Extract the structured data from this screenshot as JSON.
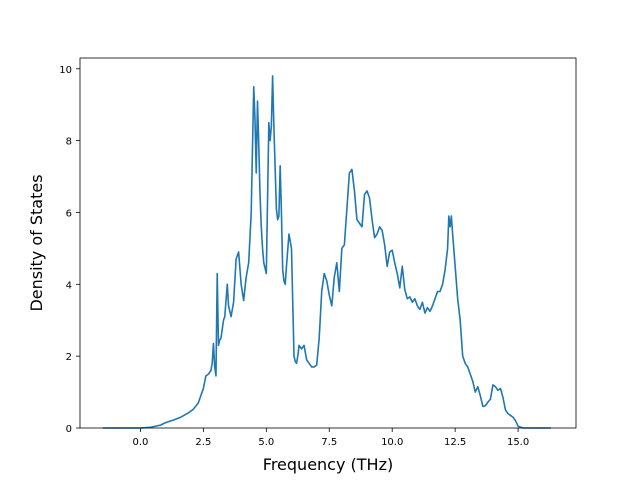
{
  "chart_data": {
    "type": "line",
    "title": "",
    "xlabel": "Frequency (THz)",
    "ylabel": "Density of States",
    "xlim": [
      -2.4,
      17.3
    ],
    "ylim": [
      0,
      10.3
    ],
    "x_ticks": [
      0.0,
      2.5,
      5.0,
      7.5,
      10.0,
      12.5,
      15.0
    ],
    "x_tick_labels": [
      "0.0",
      "2.5",
      "5.0",
      "7.5",
      "10.0",
      "12.5",
      "15.0"
    ],
    "y_ticks": [
      0,
      2,
      4,
      6,
      8,
      10
    ],
    "y_tick_labels": [
      "0",
      "2",
      "4",
      "6",
      "8",
      "10"
    ],
    "grid": false,
    "legend": "none",
    "color": "#1f77b4",
    "series": [
      {
        "x": [
          -1.5,
          0.0,
          0.4,
          0.8,
          1.0,
          1.3,
          1.6,
          1.9,
          2.1,
          2.3,
          2.4,
          2.5,
          2.6,
          2.7,
          2.8,
          2.85,
          2.9,
          2.95,
          3.0,
          3.05,
          3.1,
          3.15,
          3.2,
          3.3,
          3.35,
          3.45,
          3.5,
          3.6,
          3.7,
          3.8,
          3.9,
          4.0,
          4.1,
          4.2,
          4.3,
          4.4,
          4.5,
          4.55,
          4.6,
          4.65,
          4.7,
          4.75,
          4.8,
          4.85,
          4.9,
          5.0,
          5.1,
          5.15,
          5.2,
          5.25,
          5.3,
          5.4,
          5.45,
          5.5,
          5.55,
          5.6,
          5.65,
          5.7,
          5.75,
          5.8,
          5.9,
          6.0,
          6.1,
          6.15,
          6.2,
          6.25,
          6.3,
          6.4,
          6.5,
          6.6,
          6.7,
          6.8,
          6.9,
          7.0,
          7.1,
          7.2,
          7.3,
          7.4,
          7.5,
          7.6,
          7.7,
          7.8,
          7.9,
          8.0,
          8.1,
          8.2,
          8.3,
          8.4,
          8.5,
          8.6,
          8.7,
          8.8,
          8.9,
          9.0,
          9.1,
          9.2,
          9.3,
          9.4,
          9.5,
          9.6,
          9.7,
          9.8,
          9.9,
          10.0,
          10.1,
          10.2,
          10.3,
          10.4,
          10.5,
          10.6,
          10.7,
          10.8,
          10.9,
          11.0,
          11.1,
          11.2,
          11.3,
          11.4,
          11.5,
          11.6,
          11.7,
          11.8,
          11.9,
          12.0,
          12.1,
          12.2,
          12.25,
          12.3,
          12.35,
          12.4,
          12.5,
          12.6,
          12.7,
          12.8,
          12.9,
          13.0,
          13.1,
          13.2,
          13.3,
          13.4,
          13.5,
          13.6,
          13.7,
          13.8,
          13.9,
          14.0,
          14.1,
          14.2,
          14.3,
          14.4,
          14.5,
          14.6,
          14.7,
          14.8,
          14.9,
          15.0,
          15.2,
          15.5,
          16.0,
          16.3
        ],
        "y": [
          0,
          0,
          0.02,
          0.08,
          0.15,
          0.22,
          0.3,
          0.42,
          0.52,
          0.7,
          0.9,
          1.1,
          1.45,
          1.5,
          1.6,
          1.8,
          2.35,
          1.7,
          1.45,
          4.3,
          2.3,
          2.45,
          2.5,
          3.0,
          3.1,
          4.0,
          3.4,
          3.1,
          3.5,
          4.7,
          4.9,
          4.0,
          3.55,
          4.2,
          4.6,
          6.0,
          9.5,
          8.6,
          7.1,
          9.1,
          7.9,
          6.5,
          5.6,
          5.0,
          4.6,
          4.3,
          8.5,
          8.0,
          8.4,
          9.8,
          8.4,
          6.1,
          5.8,
          5.9,
          7.3,
          6.0,
          4.4,
          4.1,
          4.0,
          4.5,
          5.4,
          5.0,
          2.0,
          1.85,
          1.8,
          2.0,
          2.3,
          2.2,
          2.3,
          1.9,
          1.8,
          1.7,
          1.7,
          1.75,
          2.5,
          3.8,
          4.3,
          4.1,
          3.7,
          3.4,
          4.2,
          4.6,
          3.8,
          5.0,
          5.1,
          6.1,
          7.1,
          7.2,
          6.6,
          5.8,
          5.7,
          5.6,
          6.5,
          6.6,
          6.4,
          5.8,
          5.3,
          5.4,
          5.6,
          5.5,
          5.1,
          4.5,
          4.9,
          4.95,
          4.6,
          4.3,
          3.9,
          4.5,
          3.85,
          3.6,
          3.65,
          3.5,
          3.6,
          3.4,
          3.3,
          3.5,
          3.2,
          3.35,
          3.25,
          3.4,
          3.6,
          3.8,
          3.8,
          4.0,
          4.4,
          5.0,
          5.9,
          5.6,
          5.9,
          5.4,
          4.5,
          3.6,
          3.0,
          2.0,
          1.8,
          1.7,
          1.5,
          1.3,
          1.0,
          1.15,
          0.9,
          0.6,
          0.62,
          0.72,
          0.8,
          1.2,
          1.15,
          1.05,
          1.1,
          0.85,
          0.5,
          0.4,
          0.35,
          0.3,
          0.2,
          0.05,
          0,
          0,
          0,
          0
        ]
      }
    ]
  }
}
